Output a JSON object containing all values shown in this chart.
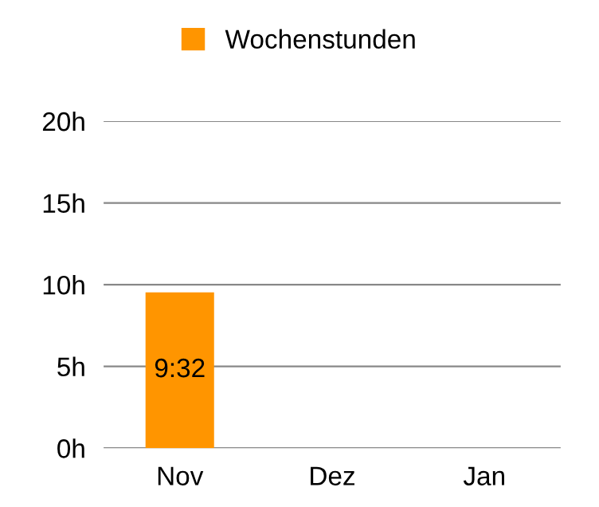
{
  "chart_data": {
    "type": "bar",
    "categories": [
      "Nov",
      "Dez",
      "Jan"
    ],
    "series": [
      {
        "name": "Wochenstunden",
        "color": "#ff9500",
        "values": [
          9.53,
          null,
          null
        ],
        "value_labels": [
          "9:32",
          null,
          null
        ]
      }
    ],
    "ylim": [
      0,
      20
    ],
    "yticks": [
      {
        "value": 0,
        "label": "0h"
      },
      {
        "value": 5,
        "label": "5h"
      },
      {
        "value": 10,
        "label": "10h"
      },
      {
        "value": 15,
        "label": "15h"
      },
      {
        "value": 20,
        "label": "20h"
      }
    ],
    "grid": "y",
    "legend": "top"
  }
}
